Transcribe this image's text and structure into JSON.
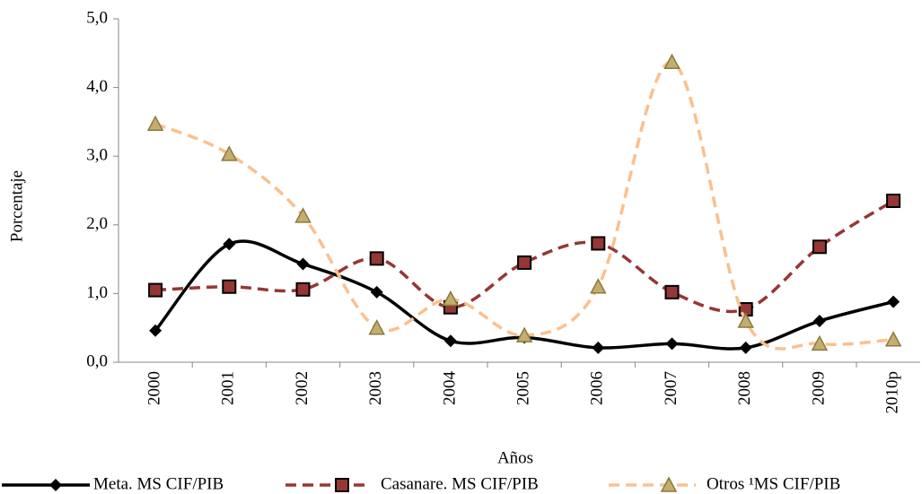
{
  "chart_data": {
    "type": "line",
    "x_label": "Años",
    "y_label": "Porcentaje",
    "categories": [
      "2000",
      "2001",
      "2002",
      "2003",
      "2004",
      "2005",
      "2006",
      "2007",
      "2008",
      "2009",
      "2010p"
    ],
    "series": [
      {
        "name": "Meta. MS CIF/PIB",
        "color": "#000000",
        "marker": "diamond",
        "dash": false,
        "values": [
          0.46,
          1.72,
          1.43,
          1.02,
          0.31,
          0.36,
          0.21,
          0.27,
          0.21,
          0.6,
          0.88
        ]
      },
      {
        "name": "Casanare. MS CIF/PIB",
        "color": "#953735",
        "marker": "square",
        "dash": true,
        "values": [
          1.05,
          1.1,
          1.06,
          1.51,
          0.8,
          1.45,
          1.73,
          1.02,
          0.77,
          1.68,
          2.35
        ]
      },
      {
        "name": "Otros ¹MS CIF/PIB",
        "color": "#fac090",
        "marker": "triangle",
        "dash": true,
        "values": [
          3.47,
          3.03,
          2.13,
          0.5,
          0.92,
          0.39,
          1.1,
          4.37,
          0.6,
          0.27,
          0.33
        ]
      }
    ],
    "ylim": [
      0,
      5
    ],
    "yticks": [
      {
        "value": 0,
        "label": "0,0"
      },
      {
        "value": 1,
        "label": "1,0"
      },
      {
        "value": 2,
        "label": "2,0"
      },
      {
        "value": 3,
        "label": "3,0"
      },
      {
        "value": 4,
        "label": "4,0"
      },
      {
        "value": 5,
        "label": "5,0"
      }
    ],
    "grid": false
  }
}
